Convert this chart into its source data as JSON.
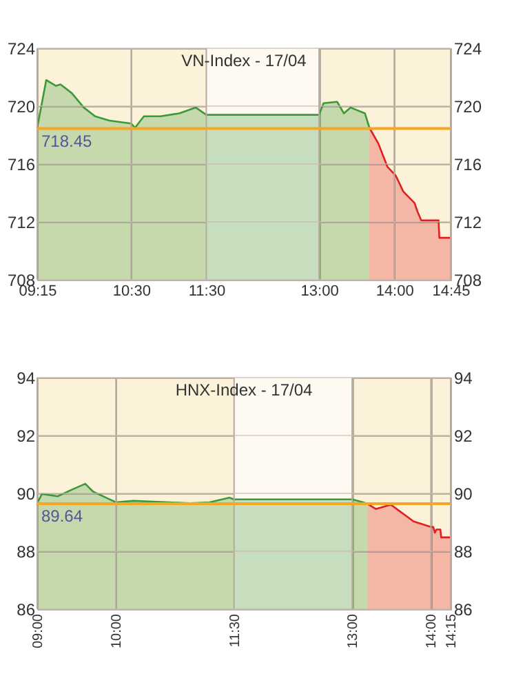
{
  "chart_data": [
    {
      "type": "area",
      "title": "VN-Index - 17/04",
      "xlim": [
        9.25,
        14.75
      ],
      "xticks": [
        {
          "value": 9.25,
          "label": "09:15"
        },
        {
          "value": 10.5,
          "label": "10:30"
        },
        {
          "value": 11.5,
          "label": "11:30"
        },
        {
          "value": 13,
          "label": "13:00"
        },
        {
          "value": 14,
          "label": "14:00"
        },
        {
          "value": 14.75,
          "label": "14:45"
        }
      ],
      "ylim": [
        708,
        724
      ],
      "yticks": [
        708,
        712,
        716,
        720,
        724
      ],
      "y2lim": [
        708,
        724
      ],
      "y2ticks": [
        708,
        712,
        716,
        720,
        724
      ],
      "grid": true,
      "bands": [
        {
          "axis": "x",
          "from": 11.5,
          "to": 13,
          "color": "#fef9f1"
        }
      ],
      "ref_lines": [
        {
          "axis": "y",
          "value": 718.45,
          "label": "718.45",
          "color": "#f5a623"
        }
      ],
      "series": [
        {
          "color": "#3a9a3a",
          "x": [
            9.25,
            9.37,
            9.5,
            9.56,
            9.71,
            9.87,
            10.02,
            10.21,
            10.5,
            10.55,
            10.67,
            10.89,
            11.14,
            11.36,
            11.5,
            13,
            13.06,
            13.24,
            13.33,
            13.42,
            13.61,
            13.67
          ],
          "values": [
            718.5,
            721.8,
            721.4,
            721.5,
            720.9,
            719.9,
            719.3,
            719.0,
            718.8,
            718.5,
            719.3,
            719.3,
            719.5,
            719.9,
            719.4,
            719.4,
            720.2,
            720.3,
            719.5,
            719.9,
            719.5,
            718.5
          ]
        },
        {
          "color": "#e02020",
          "x": [
            13.67,
            13.79,
            13.91,
            14.02,
            14.12,
            14.27,
            14.31,
            14.36,
            14.59,
            14.6,
            14.75
          ],
          "values": [
            718.5,
            717.4,
            715.8,
            715.2,
            714.1,
            713.3,
            712.7,
            712.1,
            712.1,
            710.9,
            710.9
          ]
        }
      ]
    },
    {
      "type": "area",
      "title": "HNX-Index - 17/04",
      "xlim": [
        9,
        14.25
      ],
      "xticks": [
        {
          "value": 9,
          "label": "09:00"
        },
        {
          "value": 10,
          "label": "10:00"
        },
        {
          "value": 11.5,
          "label": "11:30"
        },
        {
          "value": 13,
          "label": "13:00"
        },
        {
          "value": 14,
          "label": "14:00"
        },
        {
          "value": 14.25,
          "label": "14:15"
        }
      ],
      "ylim": [
        86,
        94
      ],
      "yticks": [
        86,
        88,
        90,
        92,
        94
      ],
      "y2lim": [
        86,
        94
      ],
      "y2ticks": [
        86,
        88,
        90,
        92,
        94
      ],
      "grid": true,
      "bands": [
        {
          "axis": "x",
          "from": 11.5,
          "to": 13,
          "color": "#fef9f1"
        }
      ],
      "ref_lines": [
        {
          "axis": "y",
          "value": 89.64,
          "label": "89.64",
          "color": "#f5a623"
        }
      ],
      "series": [
        {
          "color": "#3a9a3a",
          "x": [
            9,
            9.06,
            9.26,
            9.45,
            9.61,
            9.71,
            9.9,
            10,
            10.22,
            10.67,
            10.94,
            11.19,
            11.44,
            11.5,
            13,
            13.14,
            13.2
          ],
          "values": [
            89.66,
            89.98,
            89.9,
            90.14,
            90.33,
            90.06,
            89.82,
            89.69,
            89.74,
            89.69,
            89.66,
            89.69,
            89.85,
            89.79,
            89.79,
            89.69,
            89.63
          ]
        },
        {
          "color": "#e02020",
          "x": [
            13.2,
            13.3,
            13.49,
            13.78,
            14,
            14.03,
            14.05,
            14.07,
            14.12,
            14.13,
            14.25
          ],
          "values": [
            89.63,
            89.46,
            89.61,
            89.03,
            88.84,
            88.84,
            88.64,
            88.75,
            88.75,
            88.48,
            88.48
          ]
        }
      ]
    }
  ]
}
